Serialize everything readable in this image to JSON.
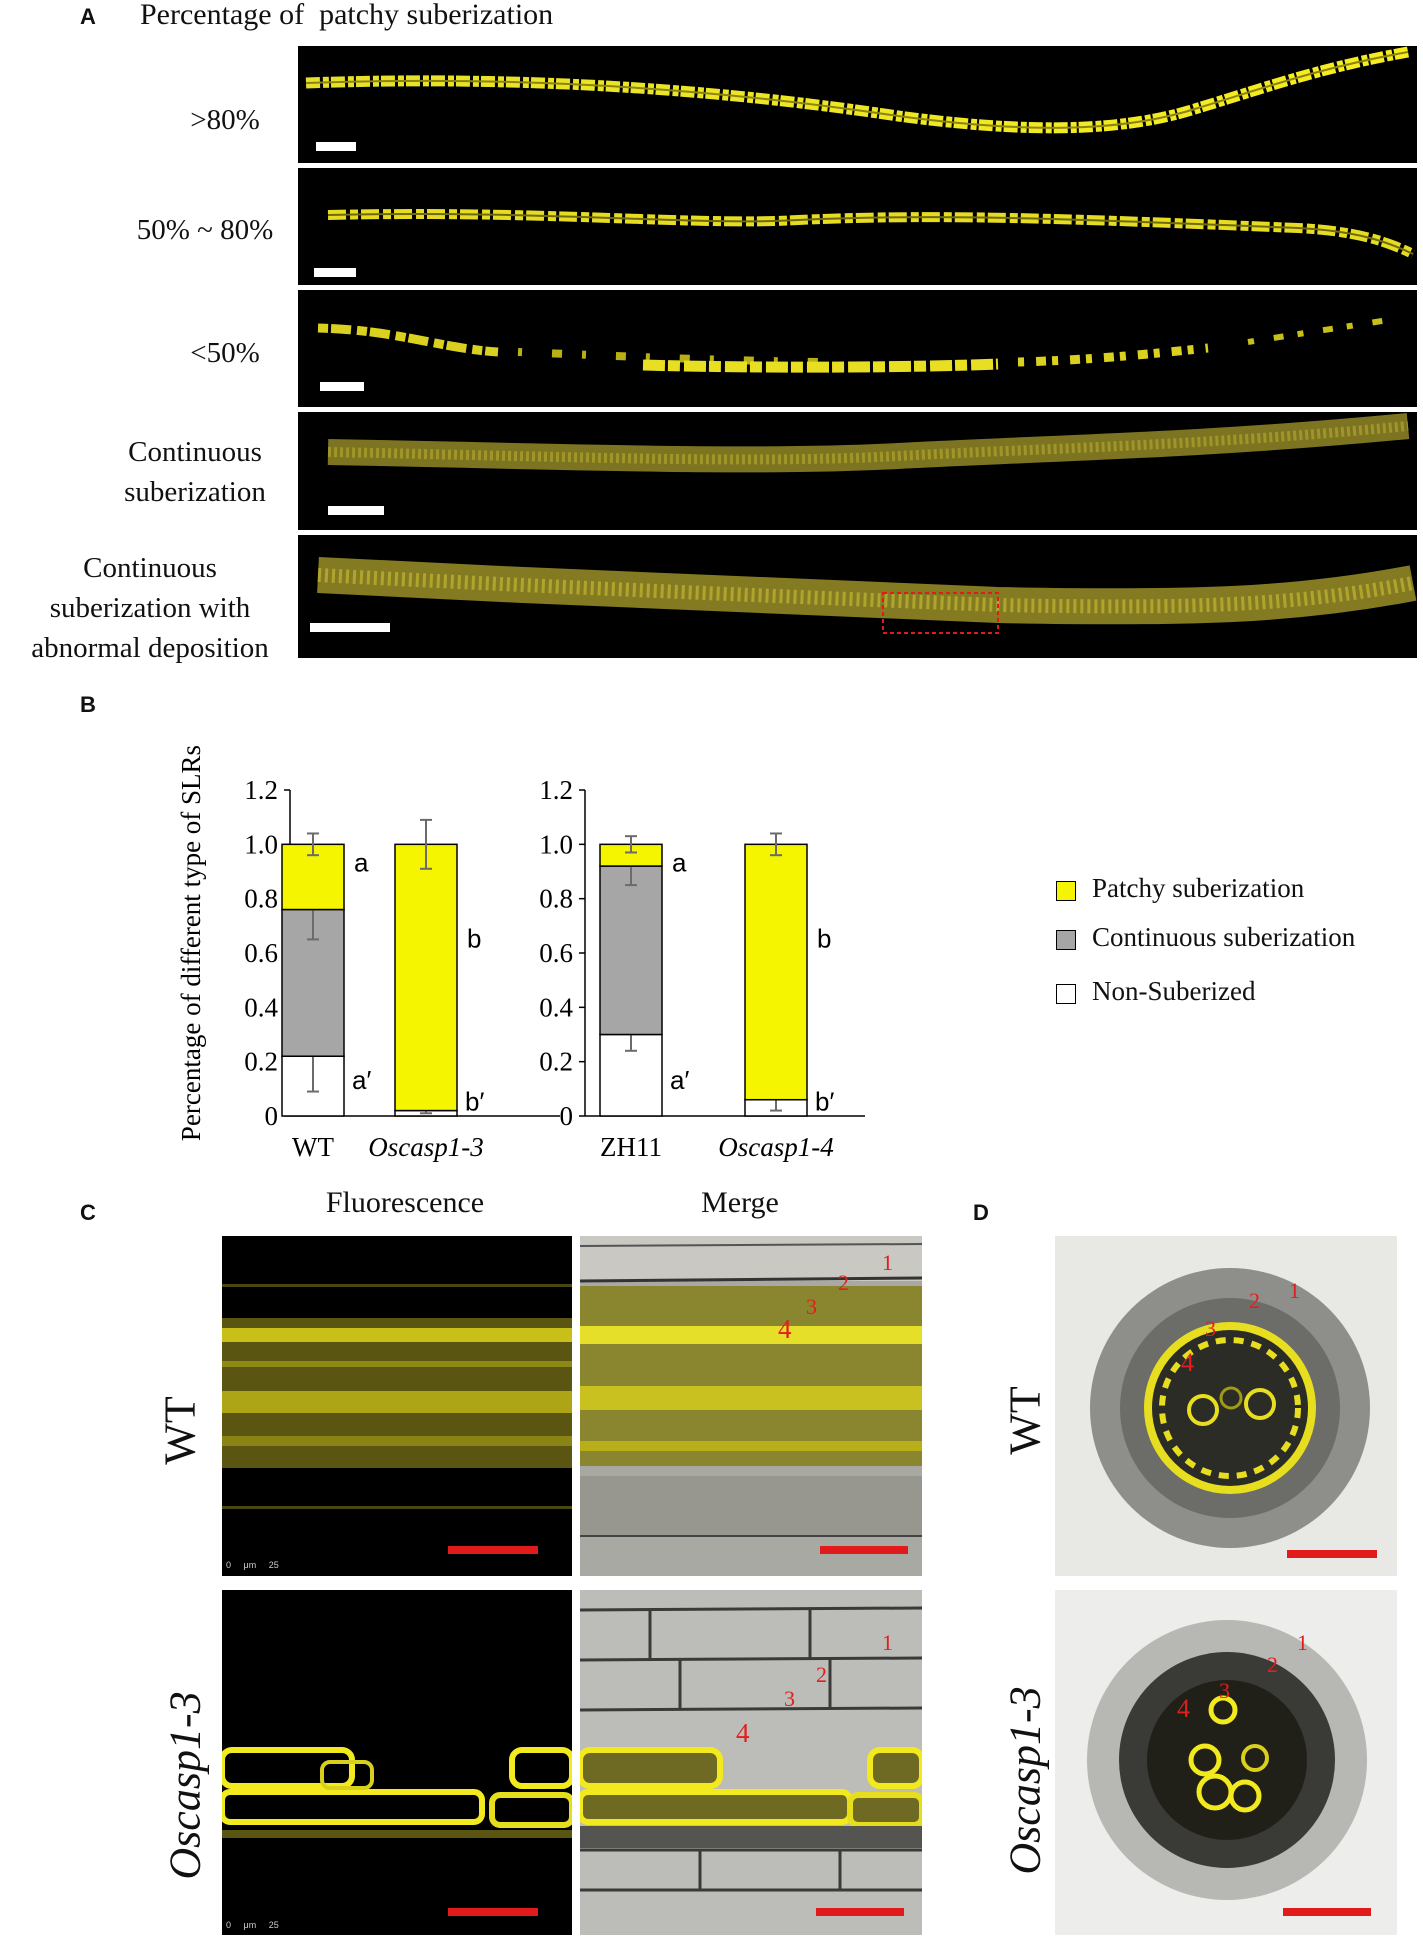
{
  "panelA": {
    "letter": "A",
    "title": "Percentage of  patchy suberization",
    "rows": [
      {
        "label_lines": [
          ">80%"
        ]
      },
      {
        "label_lines": [
          "50% ~ 80%"
        ]
      },
      {
        "label_lines": [
          "<50%"
        ]
      },
      {
        "label_lines": [
          "Continuous",
          "suberization"
        ]
      },
      {
        "label_lines": [
          "Continuous",
          "suberization with",
          "abnormal  deposition"
        ]
      }
    ]
  },
  "panelB": {
    "letter": "B",
    "legend": {
      "patchy": "Patchy suberization",
      "continuous": "Continuous suberization",
      "non": "Non-Suberized"
    }
  },
  "chart_data": [
    {
      "type": "bar",
      "stacked": true,
      "ylabel": "Percentage of different type of SLRs",
      "ylim": [
        0,
        1.2
      ],
      "yticks": [
        "0",
        "0.2",
        "0.4",
        "0.6",
        "0.8",
        "1.0",
        "1.2"
      ],
      "categories": [
        "WT",
        "Oscasp1-3"
      ],
      "series": [
        {
          "name": "Non-Suberized",
          "values": [
            0.22,
            0.02
          ],
          "error": [
            0.13,
            0.01
          ]
        },
        {
          "name": "Continuous suberization",
          "values": [
            0.54,
            0.0
          ],
          "error": [
            0.11,
            0.0
          ]
        },
        {
          "name": "Patchy suberization",
          "values": [
            0.24,
            0.98
          ],
          "error": [
            0.04,
            0.09
          ]
        }
      ],
      "letters": {
        "top": [
          "a",
          "b"
        ],
        "bottom": [
          "a′",
          "b′"
        ]
      }
    },
    {
      "type": "bar",
      "stacked": true,
      "ylim": [
        0,
        1.2
      ],
      "yticks": [
        "0",
        "0.2",
        "0.4",
        "0.6",
        "0.8",
        "1.0",
        "1.2"
      ],
      "categories": [
        "ZH11",
        "Oscasp1-4"
      ],
      "series": [
        {
          "name": "Non-Suberized",
          "values": [
            0.3,
            0.06
          ],
          "error": [
            0.06,
            0.04
          ]
        },
        {
          "name": "Continuous suberization",
          "values": [
            0.62,
            0.0
          ],
          "error": [
            0.07,
            0.0
          ]
        },
        {
          "name": "Patchy suberization",
          "values": [
            0.08,
            0.94
          ],
          "error": [
            0.03,
            0.04
          ]
        }
      ],
      "letters": {
        "top": [
          "a",
          "b"
        ],
        "bottom": [
          "a′",
          "b′"
        ]
      }
    }
  ],
  "panelC": {
    "letter": "C",
    "col_titles": [
      "Fluorescence",
      "Merge"
    ],
    "row_labels": [
      "WT",
      "Oscasp1-3"
    ],
    "scale_text": "0     μm     25",
    "numbers": [
      "1",
      "2",
      "3",
      "4"
    ]
  },
  "panelD": {
    "letter": "D",
    "row_labels": [
      "WT",
      "Oscasp1-3"
    ],
    "numbers": [
      "1",
      "2",
      "3",
      "4"
    ]
  },
  "colors": {
    "yellow": "#f5f500",
    "gray": "#a6a6a6",
    "scalebar_red": "#e11b1b",
    "fluor": "#d9d21a"
  }
}
